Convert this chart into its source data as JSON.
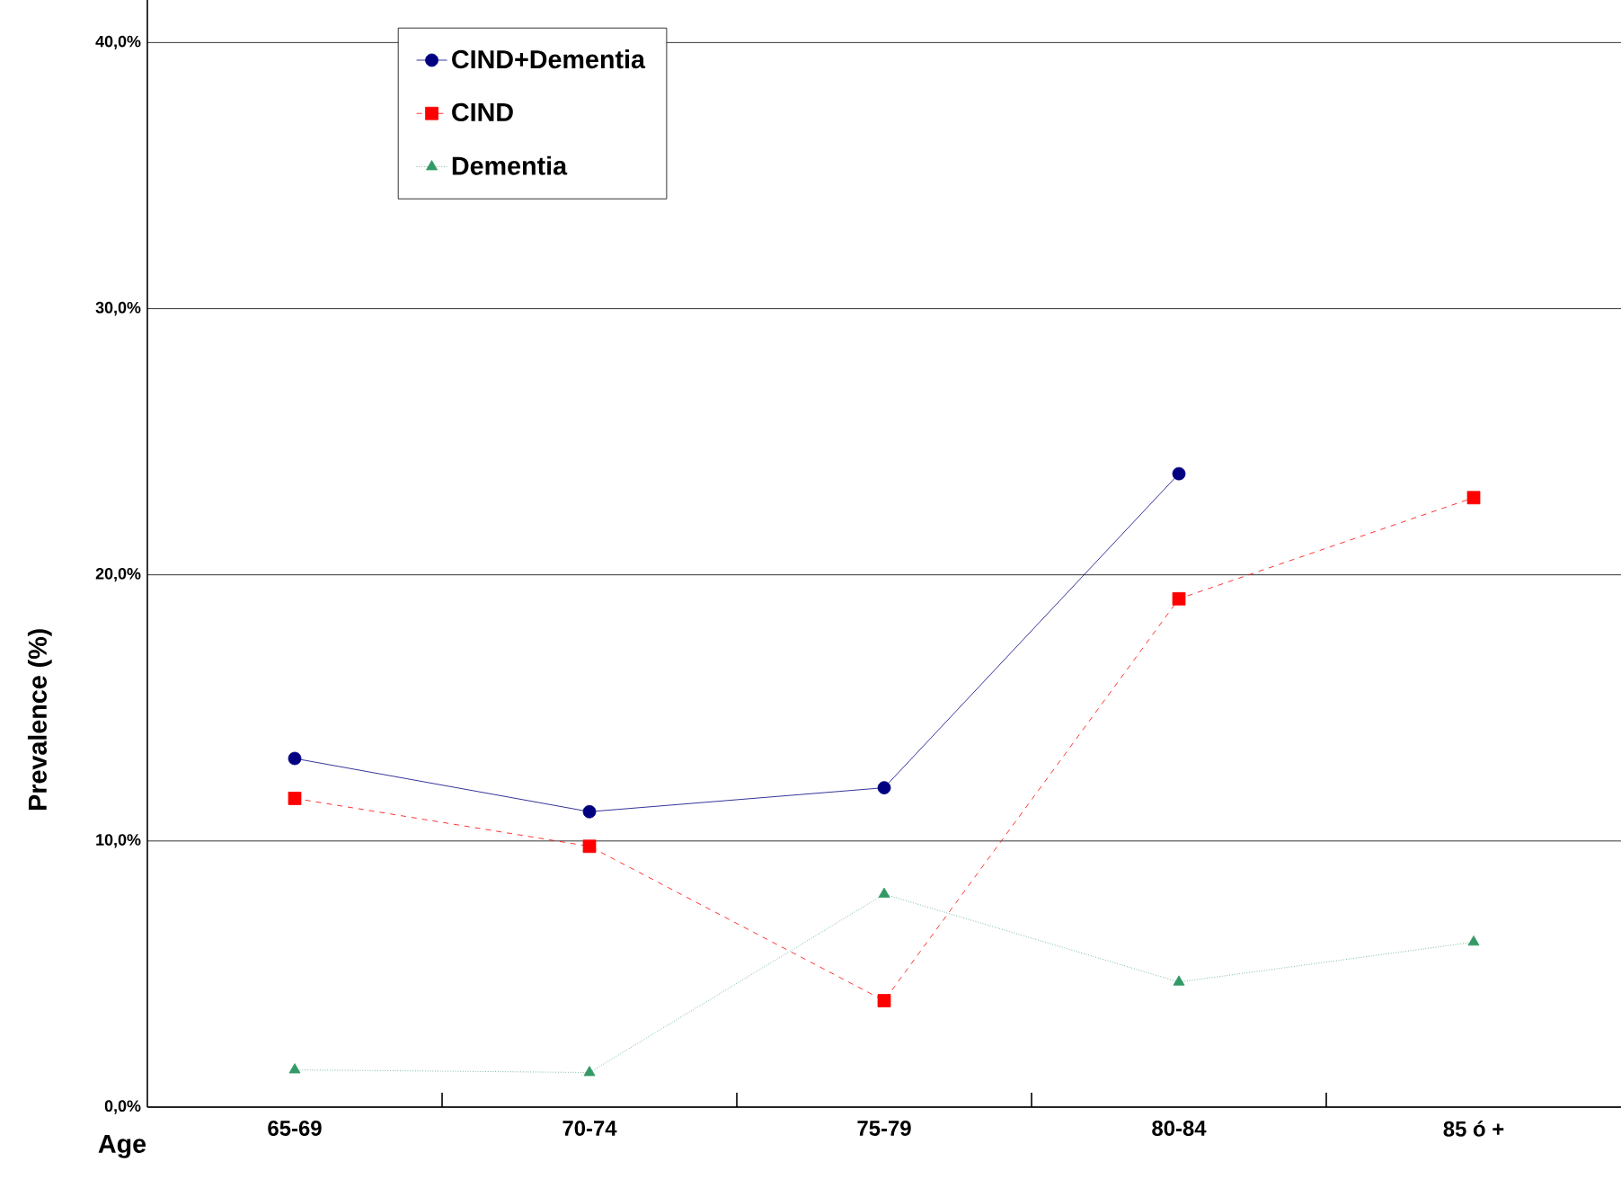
{
  "chart_data": {
    "type": "line",
    "xlabel": "Age",
    "ylabel": "Prevalence (%)",
    "categories": [
      "65-69",
      "70-74",
      "75-79",
      "80-84",
      "85 ó +"
    ],
    "series": [
      {
        "name": "CIND+Dementia",
        "color": "#000080",
        "marker": "circle",
        "line_style": "solid",
        "values": [
          13.1,
          11.1,
          12.0,
          23.8,
          null
        ]
      },
      {
        "name": "CIND",
        "color": "#ff0000",
        "marker": "square",
        "line_style": "dashed",
        "values": [
          11.6,
          9.8,
          4.0,
          19.1,
          22.9
        ]
      },
      {
        "name": "Dementia",
        "color": "#339966",
        "marker": "triangle",
        "line_style": "dotted",
        "values": [
          1.4,
          1.3,
          8.0,
          4.7,
          6.2
        ]
      }
    ],
    "ylim": [
      0,
      41.6
    ],
    "yticks": [
      {
        "value": 0,
        "label": "0,0%"
      },
      {
        "value": 10,
        "label": "10,0%"
      },
      {
        "value": 20,
        "label": "20,0%"
      },
      {
        "value": 30,
        "label": "30,0%"
      },
      {
        "value": 40,
        "label": "40,0%"
      }
    ],
    "grid": "y",
    "legend": "top left"
  }
}
